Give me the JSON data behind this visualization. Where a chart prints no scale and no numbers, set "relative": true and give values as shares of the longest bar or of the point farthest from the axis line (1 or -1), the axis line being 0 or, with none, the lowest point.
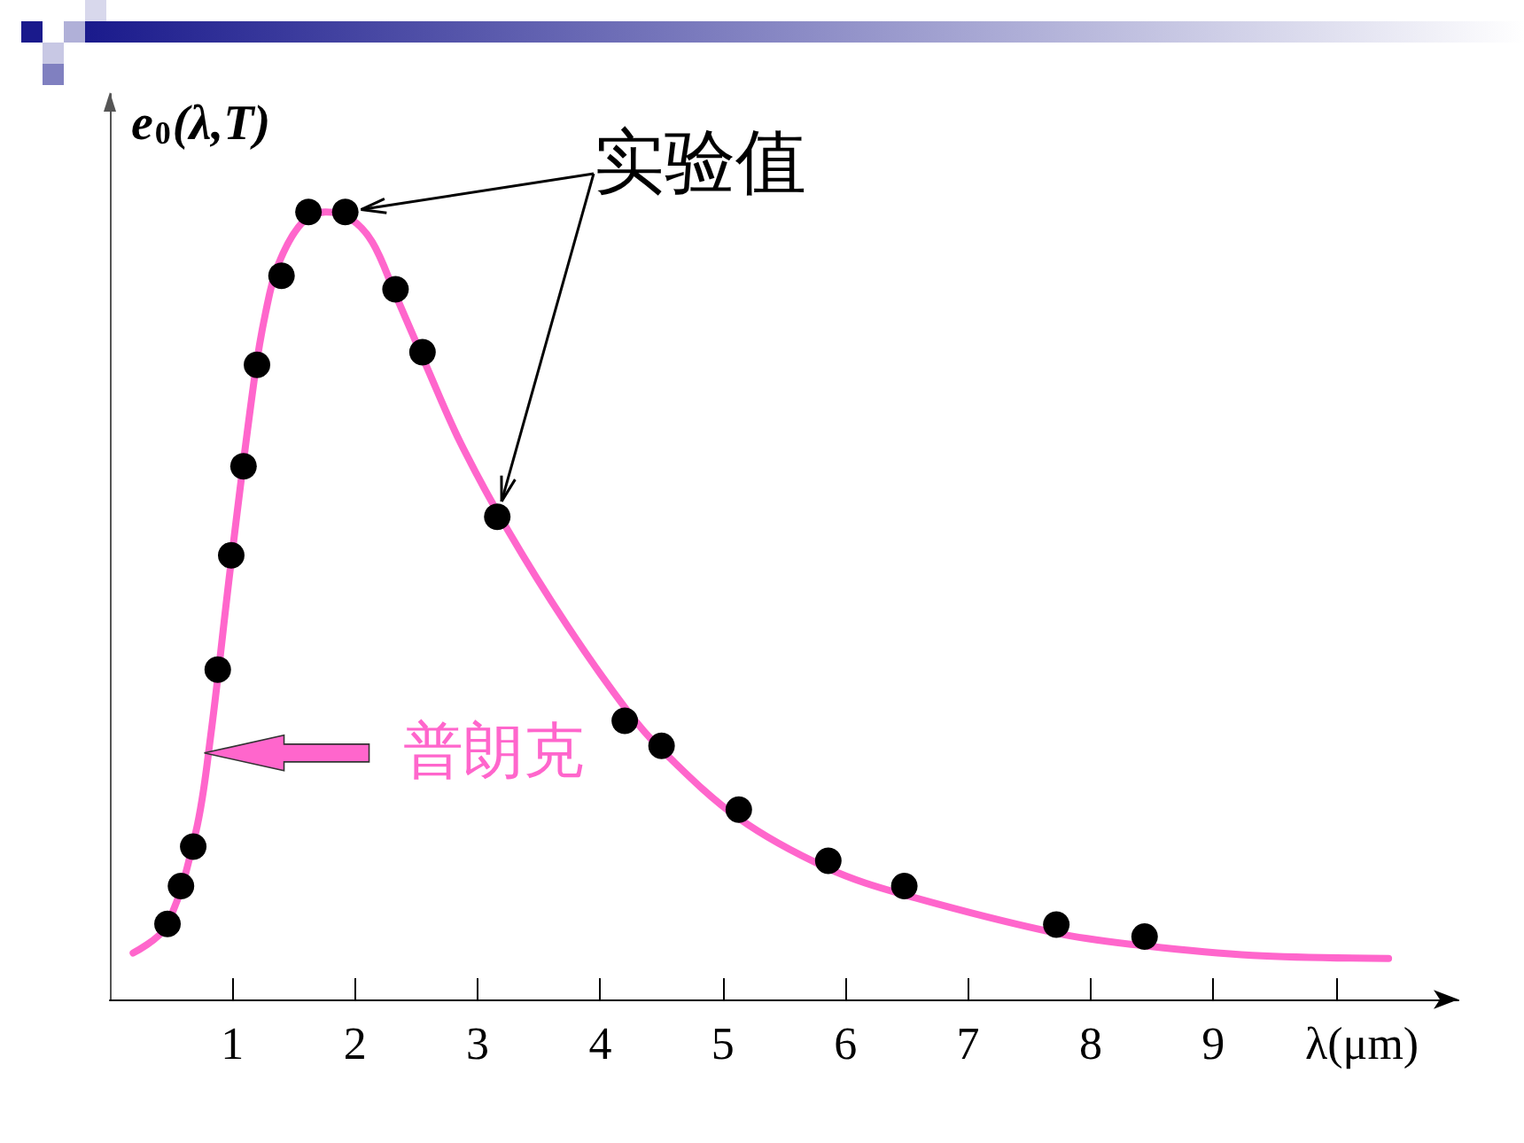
{
  "chart_data": {
    "type": "line",
    "xlabel": "λ(μm)",
    "ylabel": "e$_{0}$(λ,T)",
    "relative": true,
    "xlim": [
      0,
      11
    ],
    "xticks": [
      1,
      2,
      3,
      4,
      5,
      6,
      7,
      8,
      9,
      {
        "value": 10,
        "label": null
      }
    ],
    "grid": false,
    "legend": "top",
    "series": [
      {
        "name": "普朗克",
        "type": "line",
        "color": "#ff66cc",
        "marker": "none",
        "x": [
          0.19,
          0.455,
          0.7,
          0.82,
          0.99,
          1.18,
          1.27,
          1.37,
          1.56,
          1.76,
          1.95,
          2.14,
          2.33,
          2.58,
          2.86,
          3.25,
          3.73,
          4.21,
          4.5,
          5.13,
          5.85,
          6.48,
          7.73,
          8.45,
          9.32,
          10.43
        ],
        "values": [
          0.059,
          0.092,
          0.212,
          0.332,
          0.557,
          0.79,
          0.872,
          0.932,
          0.985,
          1.0,
          0.993,
          0.962,
          0.895,
          0.805,
          0.707,
          0.595,
          0.475,
          0.369,
          0.317,
          0.23,
          0.167,
          0.133,
          0.084,
          0.068,
          0.056,
          0.052
        ]
      },
      {
        "name": "实验值",
        "type": "scatter",
        "color": "#000000",
        "marker": "circle",
        "x": [
          0.47,
          0.58,
          0.68,
          0.88,
          0.99,
          1.09,
          1.2,
          1.4,
          1.62,
          1.92,
          2.33,
          2.55,
          3.16,
          4.2,
          4.5,
          5.13,
          5.86,
          6.48,
          7.72,
          8.44
        ],
        "values": [
          0.096,
          0.144,
          0.194,
          0.419,
          0.564,
          0.677,
          0.806,
          0.919,
          1.0,
          1.0,
          0.902,
          0.822,
          0.613,
          0.354,
          0.322,
          0.241,
          0.176,
          0.144,
          0.095,
          0.08
        ]
      }
    ]
  }
}
